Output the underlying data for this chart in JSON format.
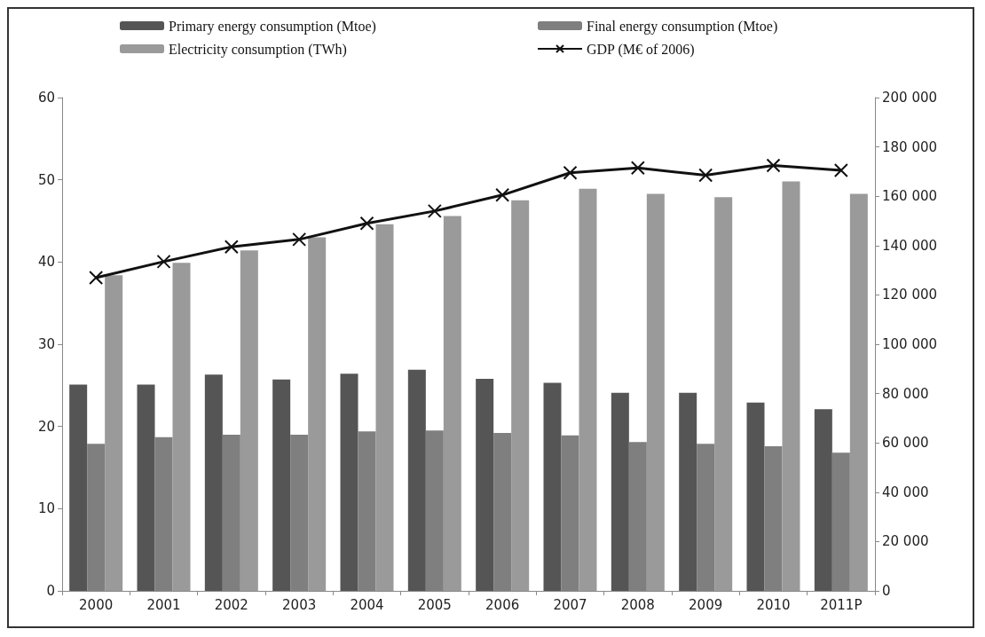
{
  "chart_data": {
    "type": "bar",
    "categories": [
      "2000",
      "2001",
      "2002",
      "2003",
      "2004",
      "2005",
      "2006",
      "2007",
      "2008",
      "2009",
      "2010",
      "2011P"
    ],
    "series": [
      {
        "name": "Primary energy consumption (Mtoe)",
        "color": "#555555",
        "values": [
          25.1,
          25.1,
          26.3,
          25.7,
          26.4,
          26.9,
          25.8,
          25.3,
          24.1,
          24.1,
          22.9,
          22.1
        ]
      },
      {
        "name": "Final energy consumption (Mtoe)",
        "color": "#7f7f7f",
        "values": [
          17.9,
          18.7,
          19.0,
          19.0,
          19.4,
          19.5,
          19.2,
          18.9,
          18.1,
          17.9,
          17.6,
          16.8
        ]
      },
      {
        "name": "Electricity consumption (TWh)",
        "color": "#9a9a9a",
        "values": [
          38.4,
          39.9,
          41.4,
          43.0,
          44.6,
          45.6,
          47.5,
          48.9,
          48.3,
          47.9,
          49.8,
          48.3
        ]
      },
      {
        "name": "GDP (M€ of 2006)",
        "type": "line",
        "axis": "y2",
        "color": "#111111",
        "marker": "cross",
        "values": [
          127000,
          133500,
          139500,
          142500,
          149000,
          154000,
          160500,
          169500,
          171500,
          168500,
          172500,
          170500
        ]
      }
    ],
    "ylim": [
      0,
      60
    ],
    "yticks": [
      0,
      10,
      20,
      30,
      40,
      50,
      60
    ],
    "y2lim": [
      0,
      200000
    ],
    "y2ticks": [
      0,
      {
        "value": 20000,
        "label": "20 000"
      },
      {
        "value": 40000,
        "label": "40 000"
      },
      {
        "value": 60000,
        "label": "60 000"
      },
      {
        "value": 80000,
        "label": "80 000"
      },
      {
        "value": 100000,
        "label": "100 000"
      },
      {
        "value": 120000,
        "label": "120 000"
      },
      {
        "value": 140000,
        "label": "140 000"
      },
      {
        "value": 160000,
        "label": "160 000"
      },
      {
        "value": 180000,
        "label": "180 000"
      },
      {
        "value": 200000,
        "label": "200 000"
      }
    ],
    "grid": false,
    "legend": "top"
  }
}
